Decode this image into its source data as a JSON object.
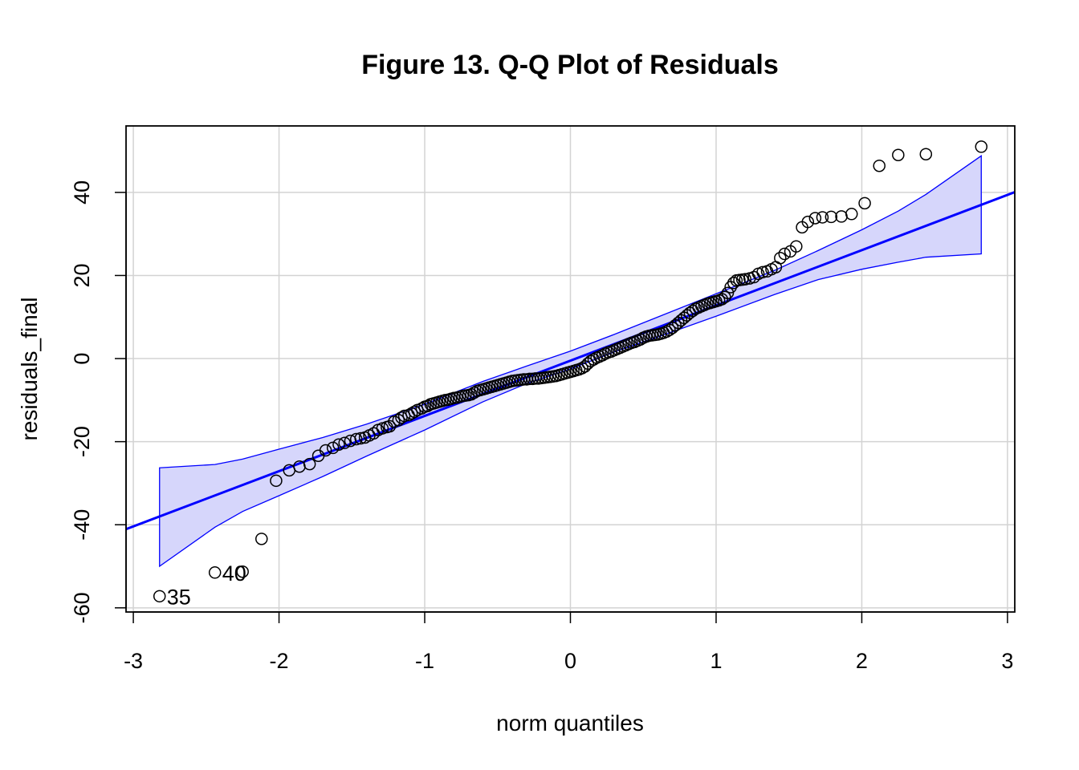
{
  "chart_data": {
    "type": "scatter",
    "title": "Figure 13. Q-Q Plot of Residuals",
    "xlabel": "norm quantiles",
    "ylabel": "residuals_final",
    "xlim": [
      -3.05,
      3.05
    ],
    "ylim": [
      -61,
      56
    ],
    "xticks": [
      -3,
      -2,
      -1,
      0,
      1,
      2,
      3
    ],
    "yticks": [
      -60,
      -40,
      -20,
      0,
      20,
      40
    ],
    "xtick_labels": [
      "-3",
      "-2",
      "-1",
      "0",
      "1",
      "2",
      "3"
    ],
    "ytick_labels": [
      "-60",
      "-40",
      "-20",
      "0",
      "20",
      "40"
    ],
    "grid": true,
    "colors": {
      "line": "#0000ff",
      "band_fill": "#d6d6fb",
      "band_edge": "#0000ff",
      "points": "#000000",
      "grid": "#d3d3d3"
    },
    "reference_line": {
      "intercept": -0.5,
      "slope": 13.3
    },
    "confidence_band": {
      "x": [
        -2.82,
        -2.44,
        -2.25,
        -2.0,
        -1.7,
        -1.4,
        -1.0,
        -0.6,
        -0.3,
        0.0,
        0.3,
        0.6,
        1.0,
        1.4,
        1.7,
        2.0,
        2.25,
        2.44,
        2.82
      ],
      "upper": [
        -26.3,
        -25.5,
        -24.2,
        -21.8,
        -19.0,
        -15.8,
        -11.0,
        -5.5,
        -1.8,
        1.8,
        5.8,
        10.0,
        15.6,
        21.2,
        26.0,
        31.0,
        35.5,
        39.5,
        48.8
      ],
      "lower": [
        -50.0,
        -40.6,
        -36.8,
        -33.0,
        -28.4,
        -23.5,
        -17.2,
        -10.4,
        -6.0,
        -2.5,
        1.6,
        5.2,
        10.2,
        15.4,
        19.0,
        21.5,
        23.2,
        24.4,
        25.2
      ]
    },
    "points": {
      "x": [
        -2.82,
        -2.44,
        -2.25,
        -2.12,
        -2.02,
        -1.93,
        -1.86,
        -1.79,
        -1.73,
        -1.68,
        -1.63,
        -1.59,
        -1.55,
        -1.51,
        -1.47,
        -1.44,
        -1.41,
        -1.38,
        -1.35,
        -1.32,
        -1.29,
        -1.26,
        -1.24,
        -1.21,
        -1.18,
        -1.16,
        -1.14,
        -1.11,
        -1.09,
        -1.07,
        -1.05,
        -1.02,
        -1.0,
        -0.98,
        -0.96,
        -0.94,
        -0.92,
        -0.9,
        -0.88,
        -0.86,
        -0.84,
        -0.82,
        -0.8,
        -0.78,
        -0.76,
        -0.74,
        -0.72,
        -0.7,
        -0.68,
        -0.66,
        -0.64,
        -0.62,
        -0.6,
        -0.58,
        -0.56,
        -0.54,
        -0.52,
        -0.5,
        -0.48,
        -0.46,
        -0.44,
        -0.42,
        -0.4,
        -0.38,
        -0.36,
        -0.34,
        -0.32,
        -0.3,
        -0.28,
        -0.26,
        -0.24,
        -0.22,
        -0.2,
        -0.18,
        -0.16,
        -0.14,
        -0.12,
        -0.1,
        -0.08,
        -0.06,
        -0.04,
        -0.02,
        0.0,
        0.02,
        0.04,
        0.06,
        0.08,
        0.1,
        0.12,
        0.14,
        0.16,
        0.18,
        0.2,
        0.22,
        0.24,
        0.26,
        0.28,
        0.3,
        0.32,
        0.34,
        0.36,
        0.38,
        0.4,
        0.42,
        0.44,
        0.46,
        0.48,
        0.5,
        0.52,
        0.54,
        0.56,
        0.58,
        0.6,
        0.62,
        0.64,
        0.66,
        0.68,
        0.7,
        0.72,
        0.74,
        0.76,
        0.78,
        0.8,
        0.82,
        0.84,
        0.86,
        0.88,
        0.9,
        0.92,
        0.94,
        0.96,
        0.98,
        1.0,
        1.02,
        1.04,
        1.06,
        1.08,
        1.1,
        1.12,
        1.14,
        1.16,
        1.18,
        1.2,
        1.23,
        1.26,
        1.29,
        1.32,
        1.35,
        1.38,
        1.41,
        1.44,
        1.47,
        1.51,
        1.55,
        1.59,
        1.63,
        1.68,
        1.73,
        1.79,
        1.86,
        1.93,
        2.02,
        2.12,
        2.25,
        2.44,
        2.82
      ],
      "y": [
        -57.2,
        -51.5,
        -51.3,
        -43.4,
        -29.4,
        -26.9,
        -26.0,
        -25.4,
        -23.4,
        -22.1,
        -21.5,
        -20.7,
        -20.3,
        -19.8,
        -19.4,
        -19.2,
        -19.0,
        -18.5,
        -18.0,
        -17.2,
        -16.8,
        -16.5,
        -16.3,
        -15.2,
        -14.8,
        -14.2,
        -13.8,
        -13.6,
        -13.2,
        -12.8,
        -12.4,
        -12.0,
        -11.6,
        -11.4,
        -11.0,
        -10.8,
        -10.6,
        -10.4,
        -10.2,
        -10.0,
        -9.9,
        -9.7,
        -9.5,
        -9.4,
        -9.2,
        -9.0,
        -8.9,
        -8.8,
        -8.6,
        -8.2,
        -7.8,
        -7.6,
        -7.4,
        -7.2,
        -7.0,
        -6.8,
        -6.6,
        -6.4,
        -6.2,
        -6.0,
        -5.8,
        -5.6,
        -5.4,
        -5.3,
        -5.2,
        -5.1,
        -5.0,
        -5.0,
        -4.9,
        -4.9,
        -4.8,
        -4.8,
        -4.7,
        -4.6,
        -4.5,
        -4.4,
        -4.3,
        -4.2,
        -4.0,
        -3.8,
        -3.6,
        -3.4,
        -3.2,
        -3.0,
        -2.8,
        -2.6,
        -2.3,
        -1.9,
        -1.2,
        -0.6,
        -0.2,
        0.2,
        0.5,
        0.8,
        1.2,
        1.5,
        1.7,
        2.0,
        2.3,
        2.6,
        2.9,
        3.2,
        3.5,
        3.8,
        4.0,
        4.3,
        4.6,
        5.0,
        5.3,
        5.5,
        5.6,
        5.7,
        5.8,
        6.0,
        6.2,
        6.5,
        6.9,
        7.4,
        8.0,
        8.6,
        9.2,
        9.8,
        10.4,
        11.0,
        11.5,
        12.0,
        12.3,
        12.6,
        12.9,
        13.2,
        13.4,
        13.6,
        13.8,
        14.0,
        14.3,
        14.8,
        15.8,
        17.2,
        18.2,
        18.8,
        18.9,
        19.0,
        19.1,
        19.3,
        19.6,
        20.4,
        20.8,
        21.0,
        21.5,
        22.0,
        24.2,
        25.2,
        25.8,
        27.0,
        31.6,
        32.9,
        33.8,
        34.0,
        34.1,
        34.2,
        34.8,
        37.4,
        46.4,
        49.0,
        49.2,
        51.0
      ]
    },
    "point_labels": [
      {
        "text": "35",
        "x": -2.82,
        "y": -57.2
      },
      {
        "text": "40",
        "x": -2.44,
        "y": -51.5
      }
    ]
  }
}
